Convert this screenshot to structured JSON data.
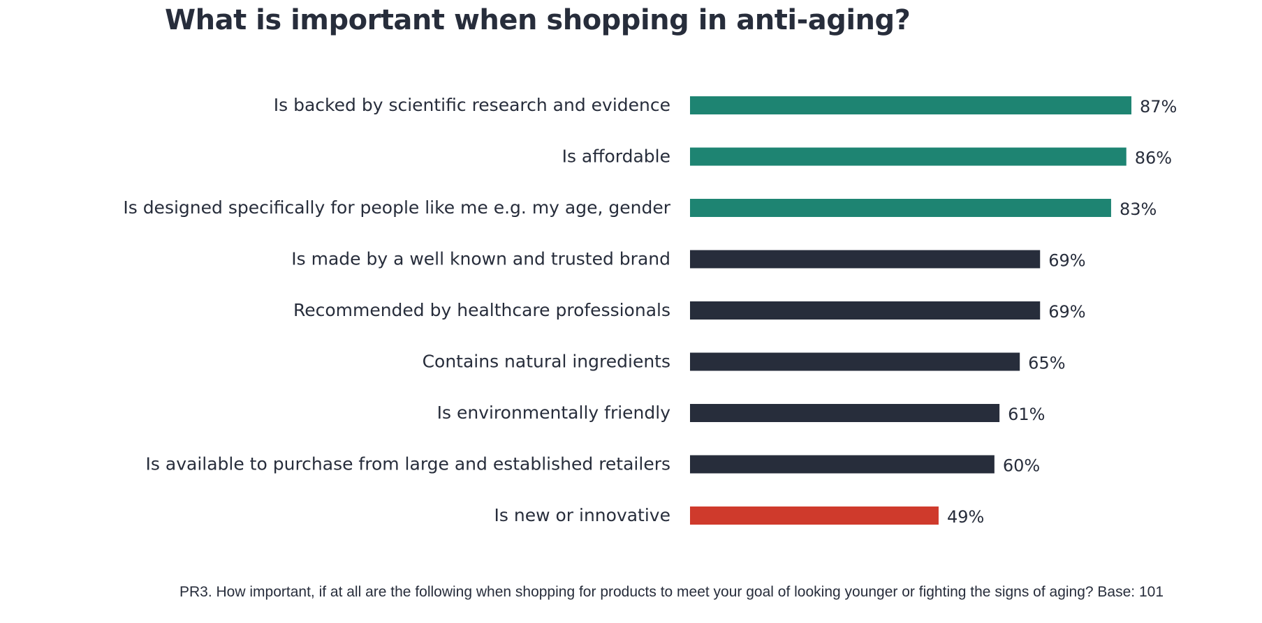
{
  "title": "What is important when shopping in anti-aging?",
  "footnote": "PR3. How important, if at all are the following when shopping for products to meet your goal of looking younger or fighting the signs of aging? Base: 101",
  "colors": {
    "top": "#1e8472",
    "middle": "#272d3b",
    "bottom": "#cf3a2c",
    "text": "#272d3b"
  },
  "chart_data": {
    "type": "bar",
    "orientation": "horizontal",
    "categories": [
      "Is backed by scientific research and evidence",
      "Is affordable",
      "Is designed specifically for people like me e.g. my age, gender",
      "Is made by a well known and trusted brand",
      "Recommended by healthcare professionals",
      "Contains natural ingredients",
      "Is environmentally friendly",
      "Is available to purchase from large and established retailers",
      "Is new or innovative"
    ],
    "values": [
      87,
      86,
      83,
      69,
      69,
      65,
      61,
      60,
      49
    ],
    "value_labels": [
      "87%",
      "86%",
      "83%",
      "69%",
      "69%",
      "65%",
      "61%",
      "60%",
      "49%"
    ],
    "bar_color_groups": [
      "top",
      "top",
      "top",
      "middle",
      "middle",
      "middle",
      "middle",
      "middle",
      "bottom"
    ],
    "xlim": [
      0,
      100
    ],
    "grid": false,
    "legend": "none"
  }
}
